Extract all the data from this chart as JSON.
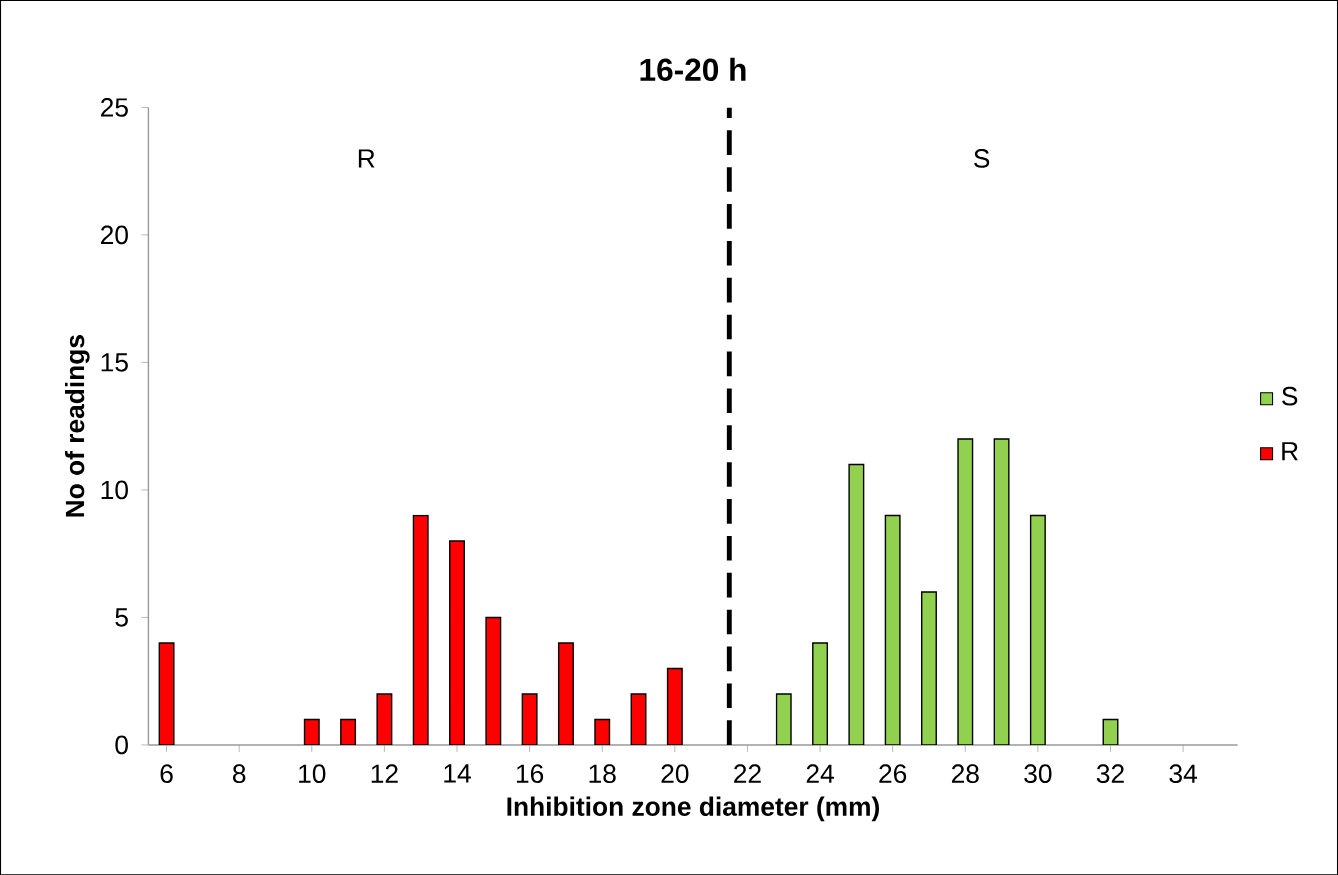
{
  "chart_data": {
    "type": "bar",
    "title": "16-20 h",
    "xlabel": "Inhibition zone diameter (mm)",
    "ylabel": "No of readings",
    "annotations": [
      "R",
      "S"
    ],
    "series": [
      {
        "name": "S",
        "color": "#92d050",
        "x": [
          23,
          24,
          25,
          26,
          27,
          28,
          29,
          30,
          32
        ],
        "values": [
          2,
          4,
          11,
          9,
          6,
          12,
          12,
          9,
          1
        ]
      },
      {
        "name": "R",
        "color": "#ff0000",
        "x": [
          6,
          10,
          11,
          12,
          13,
          14,
          15,
          16,
          17,
          18,
          19,
          20
        ],
        "values": [
          4,
          1,
          1,
          2,
          9,
          8,
          5,
          2,
          4,
          1,
          2,
          3
        ]
      }
    ],
    "xlim": [
      5.5,
      35.5
    ],
    "xticks": [
      6,
      8,
      10,
      12,
      14,
      16,
      18,
      20,
      22,
      24,
      26,
      28,
      30,
      32,
      34
    ],
    "ylim": [
      0,
      25
    ],
    "yticks": [
      0,
      5,
      10,
      15,
      20,
      25
    ],
    "ref_lines": [
      {
        "axis": "x",
        "value": 21.5,
        "color": "#000000",
        "line_style": "dashed"
      }
    ],
    "legend": "right",
    "grid": false
  }
}
